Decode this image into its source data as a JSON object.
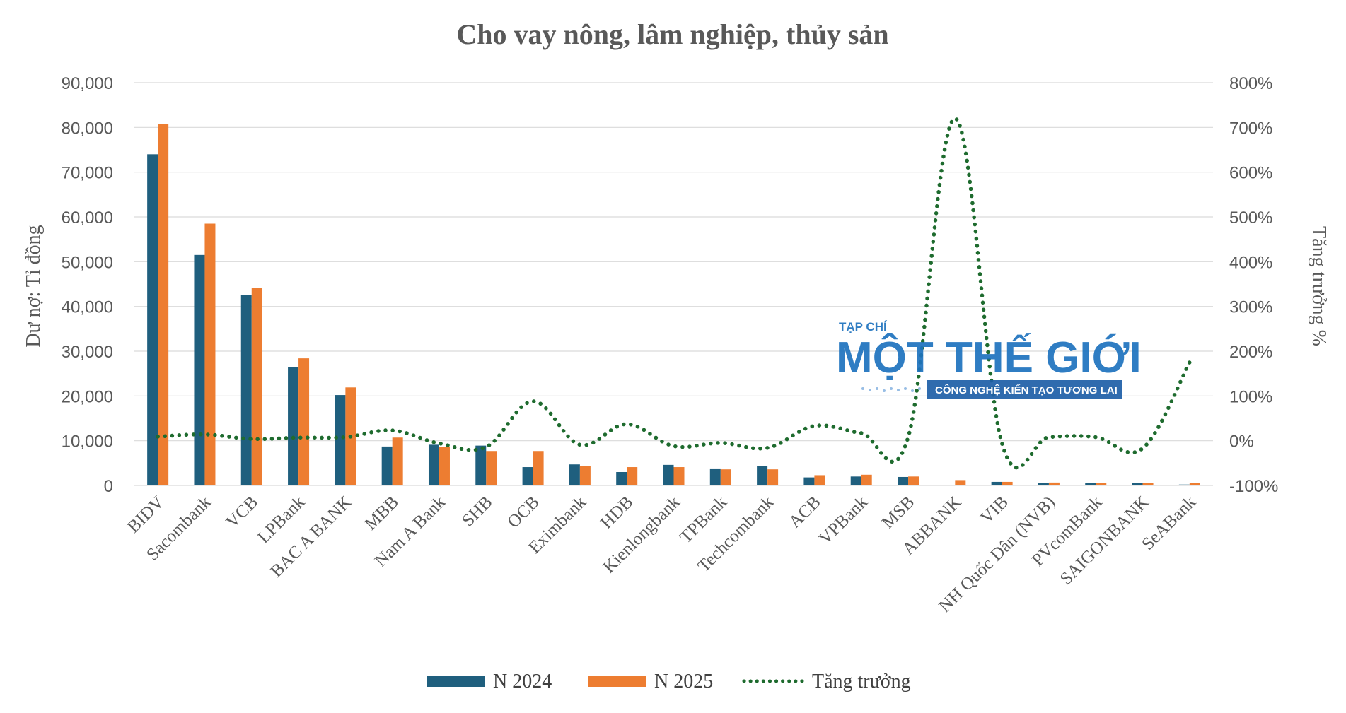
{
  "chart_data": {
    "type": "bar",
    "title": "Cho vay nông, lâm nghiệp, thủy sản",
    "ylabel": "Dư nợ: Tỉ đồng",
    "y2label": "Tăng trưởng %",
    "ylim": [
      0,
      90000
    ],
    "y2lim": [
      -100,
      800
    ],
    "yticks": [
      "0",
      "10,000",
      "20,000",
      "30,000",
      "40,000",
      "50,000",
      "60,000",
      "70,000",
      "80,000",
      "90,000"
    ],
    "y2ticks": [
      "-100%",
      "0%",
      "100%",
      "200%",
      "300%",
      "400%",
      "500%",
      "600%",
      "700%",
      "800%"
    ],
    "grid": true,
    "legend_position": "bottom",
    "categories": [
      "BIDV",
      "Sacombank",
      "VCB",
      "LPBank",
      "BAC A BANK",
      "MBB",
      "Nam A Bank",
      "SHB",
      "OCB",
      "Eximbank",
      "HDB",
      "Kienlongbank",
      "TPBank",
      "Techcombank",
      "ACB",
      "VPBank",
      "MSB",
      "ABBANK",
      "VIB",
      "NH Quốc Dân (NVB)",
      "PVcomBank",
      "SAIGONBANK",
      "SeABank"
    ],
    "series": [
      {
        "name": "N 2024",
        "type": "bar",
        "color": "#1f5f7e",
        "axis": "left",
        "values": [
          74000,
          51500,
          42500,
          26500,
          20200,
          8700,
          9100,
          8900,
          4100,
          4700,
          3000,
          4600,
          3800,
          4300,
          1800,
          2000,
          1900,
          150,
          800,
          600,
          500,
          600,
          200
        ]
      },
      {
        "name": "N 2025",
        "type": "bar",
        "color": "#ed7d31",
        "axis": "left",
        "values": [
          80700,
          58500,
          44200,
          28400,
          21900,
          10700,
          8600,
          7700,
          7700,
          4300,
          4100,
          4100,
          3600,
          3600,
          2300,
          2400,
          2000,
          1200,
          800,
          650,
          550,
          500,
          550
        ]
      },
      {
        "name": "Tăng trưởng",
        "type": "line",
        "style": "dotted",
        "color": "#1e6b2e",
        "axis": "right",
        "values": [
          9,
          14,
          4,
          7,
          8,
          23,
          -6,
          -14,
          88,
          -9,
          37,
          -12,
          -5,
          -16,
          33,
          17,
          8,
          720,
          -6,
          8,
          8,
          -17,
          175
        ]
      }
    ]
  },
  "watermark": {
    "top_text": "TẠP CHÍ",
    "main_text": "MỘT THẾ GIỚI",
    "band_text": "CÔNG NGHỆ KIẾN TẠO TƯƠNG LAI"
  }
}
